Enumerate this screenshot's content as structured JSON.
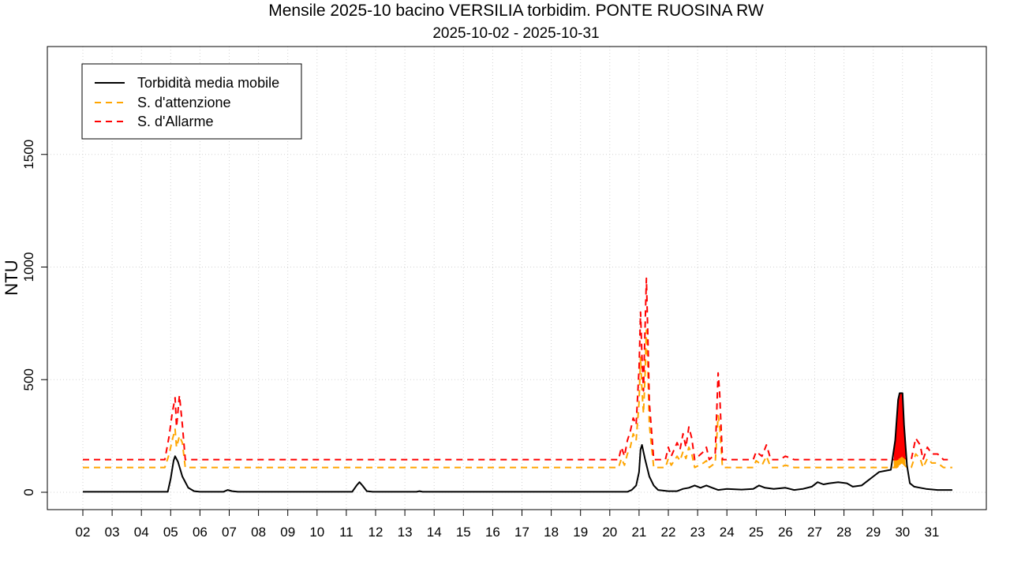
{
  "chart_data": {
    "type": "line",
    "title": "Mensile 2025-10 bacino VERSILIA torbidim. PONTE RUOSINA RW",
    "subtitle": "2025-10-02 - 2025-10-31",
    "ylabel": "NTU",
    "xlabel": "",
    "x_range_days": [
      2,
      32
    ],
    "ylim": [
      -70,
      1970
    ],
    "grid": true,
    "legend_position": "top-left",
    "x_ticks": [
      "02",
      "03",
      "04",
      "05",
      "06",
      "07",
      "08",
      "09",
      "10",
      "11",
      "12",
      "13",
      "14",
      "15",
      "16",
      "17",
      "18",
      "19",
      "20",
      "21",
      "22",
      "23",
      "24",
      "25",
      "26",
      "27",
      "28",
      "29",
      "30",
      "31"
    ],
    "y_ticks": [
      "0",
      "500",
      "1000",
      "1500"
    ],
    "y_tick_values": [
      0,
      500,
      1000,
      1500
    ],
    "series": [
      {
        "name": "Torbidità media mobile",
        "color": "#000000",
        "style": "solid",
        "points": [
          [
            2.0,
            2
          ],
          [
            4.9,
            2
          ],
          [
            5.0,
            60
          ],
          [
            5.1,
            140
          ],
          [
            5.15,
            160
          ],
          [
            5.25,
            135
          ],
          [
            5.4,
            70
          ],
          [
            5.6,
            20
          ],
          [
            5.8,
            5
          ],
          [
            6.0,
            2
          ],
          [
            6.8,
            2
          ],
          [
            6.95,
            10
          ],
          [
            7.1,
            5
          ],
          [
            7.3,
            2
          ],
          [
            11.2,
            2
          ],
          [
            11.35,
            30
          ],
          [
            11.45,
            45
          ],
          [
            11.55,
            30
          ],
          [
            11.7,
            5
          ],
          [
            11.9,
            2
          ],
          [
            13.4,
            2
          ],
          [
            13.5,
            5
          ],
          [
            13.6,
            2
          ],
          [
            20.6,
            2
          ],
          [
            20.75,
            10
          ],
          [
            20.9,
            30
          ],
          [
            21.0,
            90
          ],
          [
            21.05,
            190
          ],
          [
            21.1,
            210
          ],
          [
            21.2,
            150
          ],
          [
            21.35,
            70
          ],
          [
            21.5,
            30
          ],
          [
            21.65,
            10
          ],
          [
            22.0,
            5
          ],
          [
            22.3,
            5
          ],
          [
            22.5,
            15
          ],
          [
            22.7,
            20
          ],
          [
            22.9,
            30
          ],
          [
            23.1,
            20
          ],
          [
            23.3,
            30
          ],
          [
            23.5,
            20
          ],
          [
            23.7,
            10
          ],
          [
            24.0,
            15
          ],
          [
            24.5,
            12
          ],
          [
            24.9,
            15
          ],
          [
            25.1,
            30
          ],
          [
            25.3,
            20
          ],
          [
            25.6,
            15
          ],
          [
            26.0,
            20
          ],
          [
            26.3,
            10
          ],
          [
            26.6,
            15
          ],
          [
            26.9,
            25
          ],
          [
            27.1,
            45
          ],
          [
            27.3,
            35
          ],
          [
            27.5,
            40
          ],
          [
            27.8,
            45
          ],
          [
            28.1,
            40
          ],
          [
            28.3,
            25
          ],
          [
            28.6,
            30
          ],
          [
            28.8,
            50
          ],
          [
            29.0,
            70
          ],
          [
            29.2,
            90
          ],
          [
            29.4,
            95
          ],
          [
            29.6,
            100
          ],
          [
            29.75,
            230
          ],
          [
            29.85,
            410
          ],
          [
            29.9,
            440
          ],
          [
            30.0,
            440
          ],
          [
            30.05,
            300
          ],
          [
            30.15,
            120
          ],
          [
            30.25,
            40
          ],
          [
            30.4,
            25
          ],
          [
            30.6,
            20
          ],
          [
            30.8,
            15
          ],
          [
            31.2,
            10
          ],
          [
            31.7,
            10
          ]
        ]
      },
      {
        "name": "S. d'attenzione",
        "color": "#FFA500",
        "style": "dashed",
        "points": [
          [
            2.0,
            110
          ],
          [
            4.8,
            110
          ],
          [
            4.95,
            170
          ],
          [
            5.05,
            230
          ],
          [
            5.15,
            280
          ],
          [
            5.2,
            200
          ],
          [
            5.3,
            250
          ],
          [
            5.4,
            220
          ],
          [
            5.5,
            110
          ],
          [
            20.3,
            110
          ],
          [
            20.4,
            150
          ],
          [
            20.5,
            120
          ],
          [
            20.6,
            170
          ],
          [
            20.7,
            200
          ],
          [
            20.8,
            260
          ],
          [
            20.9,
            230
          ],
          [
            21.0,
            400
          ],
          [
            21.05,
            600
          ],
          [
            21.1,
            450
          ],
          [
            21.15,
            350
          ],
          [
            21.2,
            500
          ],
          [
            21.25,
            720
          ],
          [
            21.3,
            550
          ],
          [
            21.35,
            300
          ],
          [
            21.5,
            110
          ],
          [
            21.9,
            110
          ],
          [
            22.0,
            150
          ],
          [
            22.1,
            120
          ],
          [
            22.3,
            160
          ],
          [
            22.4,
            140
          ],
          [
            22.5,
            180
          ],
          [
            22.6,
            150
          ],
          [
            22.7,
            200
          ],
          [
            22.8,
            170
          ],
          [
            22.9,
            110
          ],
          [
            23.2,
            130
          ],
          [
            23.3,
            140
          ],
          [
            23.4,
            110
          ],
          [
            23.6,
            130
          ],
          [
            23.7,
            340
          ],
          [
            23.75,
            300
          ],
          [
            23.85,
            110
          ],
          [
            24.9,
            110
          ],
          [
            25.0,
            140
          ],
          [
            25.2,
            120
          ],
          [
            25.35,
            160
          ],
          [
            25.5,
            110
          ],
          [
            25.8,
            110
          ],
          [
            26.0,
            120
          ],
          [
            26.3,
            110
          ],
          [
            29.8,
            110
          ],
          [
            29.9,
            120
          ],
          [
            30.0,
            130
          ],
          [
            30.15,
            110
          ],
          [
            30.3,
            110
          ],
          [
            30.45,
            170
          ],
          [
            30.6,
            150
          ],
          [
            30.7,
            110
          ],
          [
            30.85,
            150
          ],
          [
            31.0,
            130
          ],
          [
            31.2,
            130
          ],
          [
            31.4,
            110
          ],
          [
            31.7,
            110
          ]
        ]
      },
      {
        "name": "S. d'Allarme",
        "color": "#FF0000",
        "style": "dashed",
        "points": [
          [
            2.0,
            145
          ],
          [
            4.8,
            145
          ],
          [
            4.95,
            250
          ],
          [
            5.05,
            350
          ],
          [
            5.15,
            420
          ],
          [
            5.2,
            290
          ],
          [
            5.3,
            430
          ],
          [
            5.4,
            300
          ],
          [
            5.5,
            145
          ],
          [
            20.3,
            145
          ],
          [
            20.4,
            200
          ],
          [
            20.5,
            160
          ],
          [
            20.6,
            230
          ],
          [
            20.7,
            270
          ],
          [
            20.8,
            330
          ],
          [
            20.9,
            300
          ],
          [
            21.0,
            550
          ],
          [
            21.05,
            800
          ],
          [
            21.1,
            600
          ],
          [
            21.15,
            450
          ],
          [
            21.2,
            700
          ],
          [
            21.25,
            950
          ],
          [
            21.3,
            700
          ],
          [
            21.35,
            400
          ],
          [
            21.5,
            145
          ],
          [
            21.9,
            145
          ],
          [
            22.0,
            200
          ],
          [
            22.1,
            160
          ],
          [
            22.3,
            220
          ],
          [
            22.4,
            190
          ],
          [
            22.5,
            260
          ],
          [
            22.6,
            200
          ],
          [
            22.7,
            290
          ],
          [
            22.8,
            240
          ],
          [
            22.9,
            145
          ],
          [
            23.2,
            180
          ],
          [
            23.3,
            200
          ],
          [
            23.4,
            145
          ],
          [
            23.6,
            170
          ],
          [
            23.7,
            530
          ],
          [
            23.75,
            450
          ],
          [
            23.85,
            145
          ],
          [
            24.9,
            145
          ],
          [
            25.0,
            180
          ],
          [
            25.2,
            160
          ],
          [
            25.35,
            210
          ],
          [
            25.5,
            145
          ],
          [
            25.8,
            145
          ],
          [
            26.0,
            160
          ],
          [
            26.3,
            145
          ],
          [
            29.8,
            145
          ],
          [
            29.9,
            150
          ],
          [
            30.0,
            160
          ],
          [
            30.15,
            145
          ],
          [
            30.3,
            145
          ],
          [
            30.45,
            240
          ],
          [
            30.6,
            210
          ],
          [
            30.7,
            145
          ],
          [
            30.85,
            200
          ],
          [
            31.0,
            170
          ],
          [
            31.2,
            170
          ],
          [
            31.4,
            145
          ],
          [
            31.7,
            145
          ]
        ]
      }
    ],
    "exceedance_fill": {
      "x_range": [
        29.7,
        30.1
      ],
      "attention_color": "#FFA500",
      "alarm_color": "#FF0000"
    }
  }
}
